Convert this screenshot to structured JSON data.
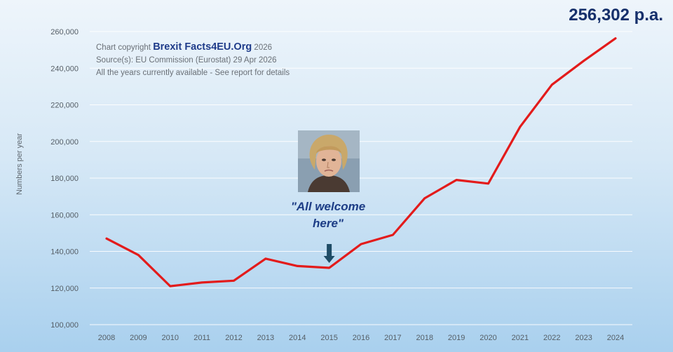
{
  "chart_data": {
    "type": "line",
    "title": "",
    "xlabel": "",
    "ylabel": "Numbers per year",
    "categories": [
      "2008",
      "2009",
      "2010",
      "2011",
      "2012",
      "2013",
      "2014",
      "2015",
      "2016",
      "2017",
      "2018",
      "2019",
      "2020",
      "2021",
      "2022",
      "2023",
      "2024"
    ],
    "series": [
      {
        "values": [
          147000,
          138000,
          121000,
          123000,
          124000,
          136000,
          132000,
          131000,
          144000,
          149000,
          169000,
          179000,
          177000,
          208000,
          231000,
          244000,
          256302
        ]
      }
    ],
    "ylim": [
      100000,
      260000
    ],
    "yticks": [
      "100,000",
      "120,000",
      "140,000",
      "160,000",
      "180,000",
      "200,000",
      "220,000",
      "240,000",
      "260,000"
    ],
    "grid": true,
    "line_color": "#e31b1b"
  },
  "credits": {
    "line1_prefix": "Chart copyright",
    "line1_brand": "Brexit Facts4EU.Org",
    "line1_suffix": "2026",
    "line2": "Source(s): EU Commission (Eurostat) 29 Apr 2026",
    "line3": "All the years currently available - See report for details"
  },
  "annotations": {
    "headline": "256,302 p.a.",
    "quote_line1": "\"All welcome",
    "quote_line2": "here\"",
    "arrow_year": "2015",
    "photo_year": "2015"
  }
}
